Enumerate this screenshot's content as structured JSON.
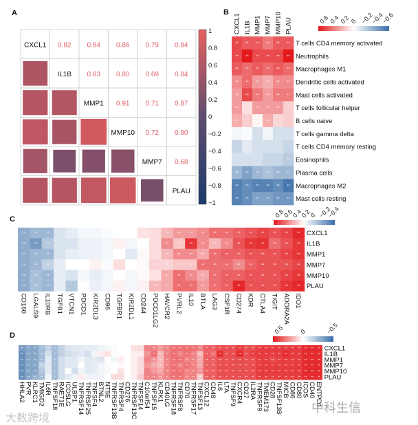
{
  "panels": {
    "a": "A",
    "b": "B",
    "c": "C",
    "d": "D"
  },
  "watermarks": {
    "left": "大数跨境",
    "right": "中科生信"
  },
  "chart_data": [
    {
      "panel": "A",
      "type": "heatmap",
      "subtype": "correlation-matrix",
      "genes": [
        "CXCL1",
        "IL1B",
        "MMP1",
        "MMP10",
        "MMP7",
        "PLAU"
      ],
      "values": [
        [
          1,
          0.82,
          0.84,
          0.86,
          0.79,
          0.84
        ],
        [
          0.82,
          1,
          0.83,
          0.8,
          0.69,
          0.84
        ],
        [
          0.84,
          0.83,
          1,
          0.91,
          0.71,
          0.87
        ],
        [
          0.86,
          0.8,
          0.91,
          1,
          0.72,
          0.9
        ],
        [
          0.79,
          0.69,
          0.71,
          0.72,
          1,
          0.68
        ],
        [
          0.84,
          0.84,
          0.87,
          0.9,
          0.68,
          1
        ]
      ],
      "labels": [
        [
          "",
          "0.82",
          "0.84",
          "0.86",
          "0.79",
          "0.84"
        ],
        [
          "",
          "",
          "0.83",
          "0.80",
          "0.69",
          "0.84"
        ],
        [
          "",
          "",
          "",
          "0.91",
          "0.71",
          "0.87"
        ],
        [
          "",
          "",
          "",
          "",
          "0.72",
          "0.90"
        ],
        [
          "",
          "",
          "",
          "",
          "",
          "0.68"
        ]
      ],
      "colorbar": {
        "range": [
          -1,
          1
        ],
        "ticks": [
          "1",
          "0.8",
          "0.6",
          "0.4",
          "0.2",
          "0",
          "−0.2",
          "−0.4",
          "−0.6",
          "−0.8",
          "−1"
        ]
      }
    },
    {
      "panel": "B",
      "type": "heatmap",
      "columns": [
        "CXCL1",
        "IL1B",
        "MMP1",
        "MMP7",
        "MMP10",
        "PLAU"
      ],
      "rows": [
        "T cells CD4 memory activated",
        "Neutrophils",
        "Macrophages M1",
        "Dendritic cells activated",
        "Mast cells activated",
        "T cells follicular helper",
        "B cells naive",
        "T cells gamma delta",
        "T cells CD4 memory resting",
        "Eosinophils",
        "Plasma cells",
        "Macrophages M2",
        "Mast cells resting"
      ],
      "values": [
        [
          0.55,
          0.5,
          0.5,
          0.4,
          0.5,
          0.5
        ],
        [
          0.55,
          0.7,
          0.55,
          0.55,
          0.55,
          0.7
        ],
        [
          0.5,
          0.45,
          0.5,
          0.45,
          0.5,
          0.45
        ],
        [
          0.35,
          0.45,
          0.3,
          0.25,
          0.35,
          0.35
        ],
        [
          0.3,
          0.55,
          0.4,
          0.3,
          0.4,
          0.4
        ],
        [
          0.3,
          0.1,
          0.3,
          0.3,
          0.3,
          0.15
        ],
        [
          0.25,
          0.15,
          0.03,
          0.25,
          0.12,
          0.15
        ],
        [
          -0.04,
          -0.02,
          -0.15,
          -0.05,
          -0.15,
          -0.15
        ],
        [
          -0.2,
          -0.1,
          -0.15,
          -0.15,
          -0.15,
          -0.2
        ],
        [
          -0.15,
          -0.15,
          -0.15,
          -0.2,
          -0.2,
          -0.25
        ],
        [
          -0.35,
          -0.45,
          -0.35,
          -0.3,
          -0.35,
          -0.35
        ],
        [
          -0.6,
          -0.55,
          -0.6,
          -0.6,
          -0.55,
          -0.65
        ],
        [
          -0.6,
          -0.55,
          -0.45,
          -0.45,
          -0.5,
          -0.5
        ]
      ],
      "stars": [
        "222222",
        "222222",
        "222222",
        "222222",
        "222222",
        "202221",
        "200200",
        "000000",
        "000000",
        "000012",
        "222222",
        "222222",
        "222222"
      ],
      "colorbar": {
        "range": [
          0.7,
          -0.7
        ],
        "ticks": [
          "0.6",
          "0.4",
          "0.2",
          "0",
          "−0.2",
          "−0.4",
          "−0.6"
        ]
      }
    },
    {
      "panel": "C",
      "type": "heatmap",
      "rows": [
        "CXCL1",
        "IL1B",
        "MMP1",
        "MMP7",
        "MMP10",
        "PLAU"
      ],
      "columns": [
        "CD160",
        "LGALS9",
        "IL10RB",
        "TGFB1",
        "VTCN1",
        "PDCD1",
        "KIR2DL3",
        "CD96",
        "TGFBR1",
        "KIR2DL1",
        "CD244",
        "PDCD1LG2",
        "HAVCR2",
        "PVRL2",
        "IL10",
        "BTLA",
        "LAG3",
        "CSF1R",
        "CD274",
        "KDR",
        "CTLA4",
        "TIGIT",
        "ADORA2A",
        "IDO1"
      ],
      "values": [
        [
          -0.45,
          -0.4,
          -0.4,
          -0.15,
          -0.1,
          -0.05,
          -0.05,
          -0.02,
          0,
          0,
          0.1,
          0.12,
          0.25,
          0.35,
          0.35,
          0.4,
          0.5,
          0.5,
          0.55,
          0.6,
          0.65,
          0.6,
          0.65,
          0.75
        ],
        [
          -0.45,
          -0.55,
          -0.3,
          -0.15,
          -0.15,
          -0.08,
          -0.08,
          -0.05,
          0.05,
          -0.05,
          0,
          0.12,
          0.4,
          0.2,
          0.7,
          0.4,
          0.25,
          0.4,
          0.6,
          0.7,
          0.72,
          0.5,
          0.6,
          0.7
        ],
        [
          -0.45,
          -0.4,
          -0.4,
          -0.15,
          -0.1,
          -0.08,
          -0.08,
          -0.05,
          0,
          -0.12,
          0.02,
          0.12,
          0.25,
          0.4,
          0.4,
          0.3,
          0.5,
          0.55,
          0.55,
          0.6,
          0.6,
          0.6,
          0.65,
          0.7
        ],
        [
          -0.45,
          -0.4,
          -0.25,
          -0.1,
          0,
          0,
          0.05,
          -0.02,
          0.12,
          0,
          0.02,
          0.15,
          0.15,
          0.2,
          0.2,
          0.5,
          0.5,
          0.5,
          0.4,
          0.55,
          0.6,
          0.6,
          0.6,
          0.65
        ],
        [
          -0.45,
          -0.35,
          -0.4,
          -0.1,
          -0.15,
          -0.05,
          -0.1,
          -0.05,
          0,
          -0.05,
          0.02,
          0.1,
          0.3,
          0.5,
          0.4,
          0.3,
          0.5,
          0.55,
          0.55,
          0.6,
          0.6,
          0.6,
          0.65,
          0.7
        ],
        [
          -0.45,
          -0.35,
          -0.4,
          -0.1,
          -0.3,
          0,
          -0.08,
          -0.05,
          0.05,
          -0.05,
          0.05,
          0.25,
          0.3,
          0.5,
          0.5,
          0.35,
          0.5,
          0.55,
          0.75,
          0.6,
          0.6,
          0.6,
          0.7,
          0.75
        ]
      ],
      "stars": [
        "222000000011222222222222",
        "222000000001222222222222",
        "222000000001222222222222",
        "222000001002122222222222",
        "222000000000222222222222",
        "222000000002222222222222"
      ],
      "colorbar": {
        "range": [
          0.8,
          -0.4
        ],
        "ticks": [
          "0.8",
          "0.6",
          "0.4",
          "0.2",
          "0",
          "−0.2",
          "−0.4"
        ]
      }
    },
    {
      "panel": "D",
      "type": "heatmap",
      "rows": [
        "CXCL1",
        "IL1B",
        "MMP1",
        "MMP7",
        "MMP10",
        "PLAU"
      ],
      "columns": [
        "HHLA2",
        "PVR",
        "KLRC1",
        "TMIGD2",
        "IL6R",
        "TNFSF18",
        "RAET1E",
        "ICOSLG",
        "ULBP1",
        "TNFRSF14",
        "TNFRSF25",
        "TNFSF4",
        "BTNL2",
        "NT5E",
        "TNFRSF13B",
        "TNFRSF4",
        "CD276",
        "TNFRSF13C",
        "TNFSF14",
        "C10orf54",
        "TNFSF15",
        "KLRK1",
        "CD40LG",
        "TNFRSF18",
        "TNFRSF8",
        "CD70",
        "TNFRSF17",
        "TNFSF13",
        "CXCL12",
        "CD48",
        "IL6",
        "LTA",
        "TNFSF9",
        "CXCR4",
        "CD27",
        "IL2RA",
        "TNFRSF9",
        "TMEM173",
        "CD28",
        "TNFSF13B",
        "MICB",
        "CD86",
        "CD80",
        "ICOS",
        "CD40",
        "ENTPD1"
      ],
      "values": [
        [
          -0.45,
          -0.4,
          -0.4,
          -0.3,
          -0.2,
          -0.3,
          -0.2,
          -0.12,
          -0.1,
          -0.1,
          -0.08,
          -0.08,
          -0.05,
          -0.03,
          -0.02,
          0,
          0,
          0.08,
          0.1,
          0.35,
          0.35,
          0.3,
          0.35,
          0.4,
          0.4,
          0.4,
          0.4,
          0.35,
          0.45,
          0.45,
          0.5,
          0.5,
          0.5,
          0.55,
          0.5,
          0.5,
          0.55,
          0.55,
          0.55,
          0.55,
          0.55,
          0.55,
          0.55,
          0.6,
          0.6,
          0.6
        ],
        [
          -0.5,
          -0.4,
          -0.4,
          -0.3,
          -0.15,
          -0.3,
          -0.2,
          -0.15,
          -0.12,
          -0.1,
          -0.15,
          -0.05,
          0.05,
          0.08,
          -0.02,
          0,
          0,
          0.05,
          0.05,
          0.3,
          0.4,
          0.2,
          0.35,
          0.4,
          0.35,
          0.4,
          0.35,
          0.2,
          0.45,
          0.4,
          0.6,
          0.5,
          0.5,
          0.6,
          0.5,
          0.55,
          0.55,
          0.55,
          0.55,
          0.55,
          0.6,
          0.55,
          0.55,
          0.6,
          0.6,
          0.6
        ],
        [
          -0.5,
          -0.4,
          -0.4,
          -0.3,
          -0.1,
          -0.3,
          -0.15,
          -0.1,
          -0.1,
          -0.05,
          -0.1,
          -0.1,
          -0.12,
          0,
          -0.05,
          0.05,
          0,
          0.05,
          0.1,
          0.35,
          0.3,
          0.2,
          0.35,
          0.4,
          0.4,
          0.35,
          0.35,
          0.25,
          0.45,
          0.45,
          0.5,
          0.5,
          0.5,
          0.5,
          0.5,
          0.5,
          0.55,
          0.55,
          0.5,
          0.55,
          0.55,
          0.55,
          0.55,
          0.6,
          0.6,
          0.6
        ],
        [
          -0.5,
          -0.4,
          -0.4,
          -0.2,
          -0.1,
          -0.3,
          -0.15,
          -0.1,
          -0.1,
          0,
          -0.1,
          -0.08,
          -0.05,
          -0.02,
          0,
          0.02,
          0,
          0.05,
          0.1,
          0.3,
          0.25,
          0.2,
          0.35,
          0.4,
          0.35,
          0.4,
          0.35,
          0.25,
          0.45,
          0.45,
          0.5,
          0.5,
          0.5,
          0.5,
          0.5,
          0.5,
          0.55,
          0.55,
          0.55,
          0.55,
          0.55,
          0.55,
          0.55,
          0.6,
          0.6,
          0.6
        ],
        [
          -0.5,
          -0.4,
          -0.4,
          -0.25,
          -0.1,
          -0.3,
          -0.15,
          0,
          -0.15,
          -0.05,
          -0.1,
          -0.08,
          -0.05,
          -0.03,
          0,
          0.08,
          0,
          0.05,
          0.1,
          0.35,
          0.3,
          0.25,
          0.35,
          0.4,
          0.4,
          0.35,
          0.35,
          0.3,
          0.45,
          0.45,
          0.5,
          0.5,
          0.5,
          0.5,
          0.5,
          0.5,
          0.55,
          0.55,
          0.55,
          0.55,
          0.55,
          0.55,
          0.55,
          0.6,
          0.6,
          0.6
        ],
        [
          -0.5,
          -0.4,
          -0.35,
          -0.3,
          -0.05,
          -0.3,
          -0.15,
          -0.1,
          -0.05,
          0.05,
          -0.05,
          -0.05,
          -0.05,
          0,
          0.1,
          0.1,
          0,
          0.05,
          0.15,
          0.35,
          0.35,
          0.3,
          0.35,
          0.4,
          0.4,
          0.35,
          0.35,
          0.15,
          0.45,
          0.45,
          0.5,
          0.5,
          0.5,
          0.5,
          0.5,
          0.5,
          0.55,
          0.55,
          0.55,
          0.55,
          0.55,
          0.55,
          0.55,
          0.6,
          0.6,
          0.6
        ]
      ],
      "stars": [
        "2221110000000000000022222222222222222222222222",
        "2222010100100000000022122222222222222222222222",
        "2222010000000000000022222222222222222222222222",
        "2222010000000000000021222222222222222222222222",
        "2221010000000000000022222222222222222222222222",
        "2222010000000000000122222222222122222222222222"
      ],
      "colorbar": {
        "range": [
          0.6,
          -0.6
        ],
        "ticks": [
          "0.5",
          "0",
          "−0.5"
        ]
      }
    }
  ],
  "colors": {
    "pos": "#e3191c",
    "neg": "#3a6ea8",
    "corr": "#e05c5e",
    "corrText": "#e0636a",
    "grid": "#cccccc"
  }
}
